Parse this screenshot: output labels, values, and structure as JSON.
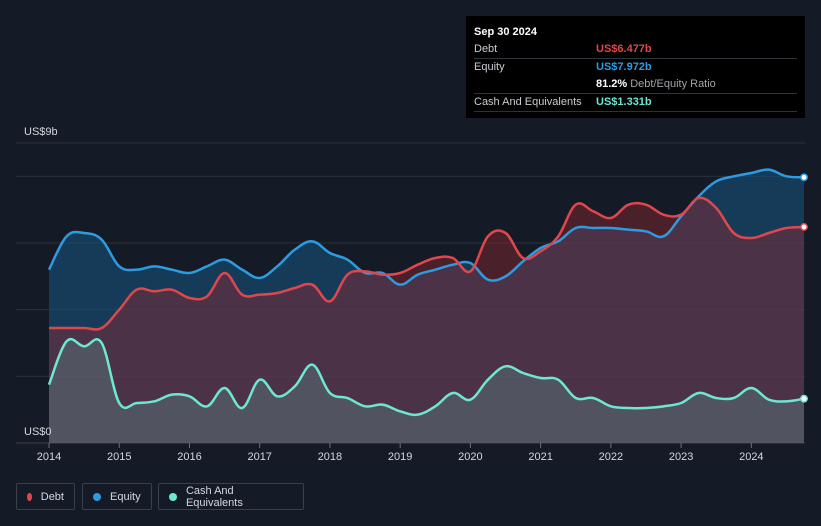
{
  "tooltip": {
    "date": "Sep 30 2024",
    "rows": [
      {
        "label": "Debt",
        "value": "US$6.477b",
        "color": "#e0474c"
      },
      {
        "label": "Equity",
        "value": "US$7.972b",
        "color": "#2d9be0"
      }
    ],
    "ratio_pct": "81.2%",
    "ratio_label": "Debt/Equity Ratio",
    "cash": {
      "label": "Cash And Equivalents",
      "value": "US$1.331b",
      "color": "#6ee7d2"
    }
  },
  "legend": [
    {
      "label": "Debt",
      "color": "#e0474c"
    },
    {
      "label": "Equity",
      "color": "#2d9be0"
    },
    {
      "label": "Cash And Equivalents",
      "color": "#6ee7d2"
    }
  ],
  "chart_data": {
    "type": "area",
    "title": "",
    "y_top_label": "US$9b",
    "y_bottom_label": "US$0",
    "ylim": [
      0,
      9
    ],
    "xlim": [
      2014,
      2024.75
    ],
    "x_ticks": [
      "2014",
      "2015",
      "2016",
      "2017",
      "2018",
      "2019",
      "2020",
      "2021",
      "2022",
      "2023",
      "2024"
    ],
    "series": [
      {
        "name": "Equity",
        "color": "#2d9be0",
        "x": [
          2014,
          2014.25,
          2014.5,
          2014.75,
          2015,
          2015.25,
          2015.5,
          2015.75,
          2016,
          2016.25,
          2016.5,
          2016.75,
          2017,
          2017.25,
          2017.5,
          2017.75,
          2018,
          2018.25,
          2018.5,
          2018.75,
          2019,
          2019.25,
          2019.5,
          2019.75,
          2020,
          2020.25,
          2020.5,
          2020.75,
          2021,
          2021.25,
          2021.5,
          2021.75,
          2022,
          2022.25,
          2022.5,
          2022.75,
          2023,
          2023.25,
          2023.5,
          2023.75,
          2024,
          2024.25,
          2024.5,
          2024.75
        ],
        "values": [
          5.2,
          6.2,
          6.3,
          6.1,
          5.3,
          5.2,
          5.3,
          5.2,
          5.1,
          5.3,
          5.5,
          5.2,
          4.95,
          5.3,
          5.8,
          6.05,
          5.7,
          5.5,
          5.1,
          5.1,
          4.75,
          5.05,
          5.2,
          5.35,
          5.4,
          4.9,
          5.0,
          5.45,
          5.85,
          6.05,
          6.45,
          6.45,
          6.45,
          6.4,
          6.35,
          6.2,
          6.8,
          7.4,
          7.85,
          8.0,
          8.1,
          8.2,
          8.0,
          7.97
        ]
      },
      {
        "name": "Debt",
        "color": "#e0474c",
        "x": [
          2014,
          2014.25,
          2014.5,
          2014.75,
          2015,
          2015.25,
          2015.5,
          2015.75,
          2016,
          2016.25,
          2016.5,
          2016.75,
          2017,
          2017.25,
          2017.5,
          2017.75,
          2018,
          2018.25,
          2018.5,
          2018.75,
          2019,
          2019.25,
          2019.5,
          2019.75,
          2020,
          2020.25,
          2020.5,
          2020.75,
          2021,
          2021.25,
          2021.5,
          2021.75,
          2022,
          2022.25,
          2022.5,
          2022.75,
          2023,
          2023.25,
          2023.5,
          2023.75,
          2024,
          2024.25,
          2024.5,
          2024.75
        ],
        "values": [
          3.45,
          3.45,
          3.45,
          3.45,
          4.0,
          4.6,
          4.55,
          4.6,
          4.35,
          4.4,
          5.1,
          4.45,
          4.45,
          4.5,
          4.65,
          4.75,
          4.25,
          5.05,
          5.15,
          5.05,
          5.1,
          5.35,
          5.55,
          5.55,
          5.15,
          6.2,
          6.3,
          5.55,
          5.75,
          6.2,
          7.15,
          6.95,
          6.75,
          7.15,
          7.15,
          6.85,
          6.85,
          7.35,
          7.05,
          6.3,
          6.15,
          6.3,
          6.45,
          6.48
        ]
      },
      {
        "name": "Cash And Equivalents",
        "color": "#6ee7d2",
        "x": [
          2014,
          2014.25,
          2014.5,
          2014.75,
          2015,
          2015.25,
          2015.5,
          2015.75,
          2016,
          2016.25,
          2016.5,
          2016.75,
          2017,
          2017.25,
          2017.5,
          2017.75,
          2018,
          2018.25,
          2018.5,
          2018.75,
          2019,
          2019.25,
          2019.5,
          2019.75,
          2020,
          2020.25,
          2020.5,
          2020.75,
          2021,
          2021.25,
          2021.5,
          2021.75,
          2022,
          2022.25,
          2022.5,
          2022.75,
          2023,
          2023.25,
          2023.5,
          2023.75,
          2024,
          2024.25,
          2024.5,
          2024.75
        ],
        "values": [
          1.75,
          3.05,
          2.9,
          3.0,
          1.2,
          1.2,
          1.25,
          1.45,
          1.4,
          1.1,
          1.65,
          1.05,
          1.9,
          1.4,
          1.7,
          2.35,
          1.5,
          1.35,
          1.1,
          1.15,
          0.95,
          0.85,
          1.1,
          1.5,
          1.3,
          1.9,
          2.3,
          2.1,
          1.95,
          1.9,
          1.35,
          1.35,
          1.1,
          1.05,
          1.05,
          1.1,
          1.2,
          1.5,
          1.35,
          1.35,
          1.65,
          1.3,
          1.25,
          1.33
        ]
      }
    ]
  }
}
